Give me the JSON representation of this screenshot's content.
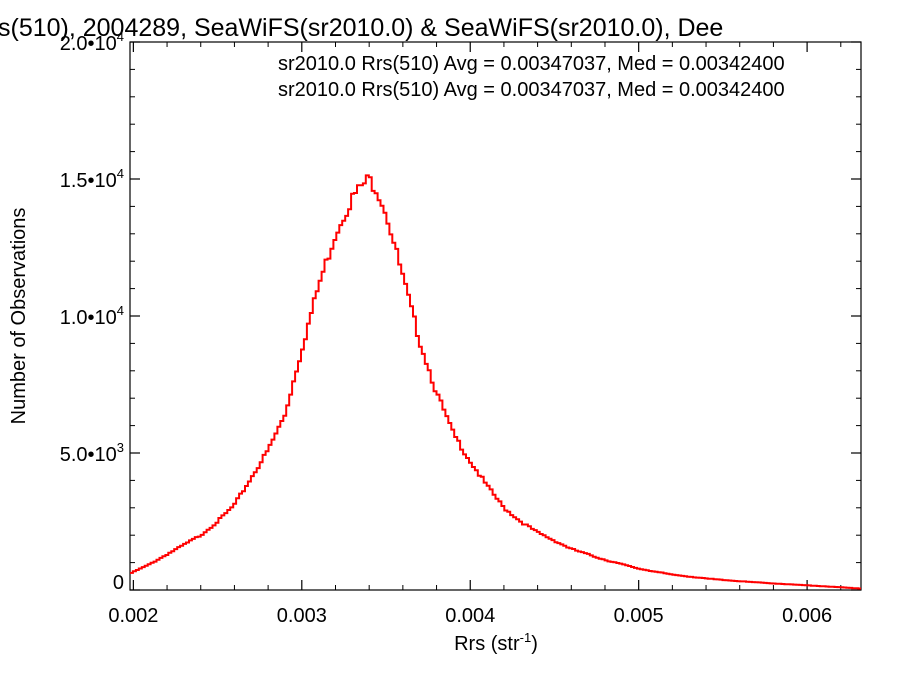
{
  "chart_data": {
    "type": "line",
    "title": "s(510), 2004289, SeaWiFS(sr2010.0) & SeaWiFS(sr2010.0), Dee",
    "xlabel": "Rrs (str",
    "xlabel_sup": "-1",
    "xlabel_end": ")",
    "ylabel": "Number of Observations",
    "xlim": [
      0.00198,
      0.00632
    ],
    "ylim": [
      0,
      20000
    ],
    "x_ticks": [
      0.002,
      0.003,
      0.004,
      0.005,
      0.006
    ],
    "x_tick_labels": [
      "0.002",
      "0.003",
      "0.004",
      "0.005",
      "0.006"
    ],
    "y_ticks": [
      {
        "value": 0,
        "mant": "0",
        "exp": ""
      },
      {
        "value": 5000,
        "mant": "5.0•10",
        "exp": "3"
      },
      {
        "value": 10000,
        "mant": "1.0•10",
        "exp": "4"
      },
      {
        "value": 15000,
        "mant": "1.5•10",
        "exp": "4"
      },
      {
        "value": 20000,
        "mant": "2.0•10",
        "exp": "4"
      }
    ],
    "annotations": [
      {
        "text": "sr2010.0 Rrs(510) Avg = 0.00347037, Med = 0.00342400",
        "color": "#000000"
      },
      {
        "text": "sr2010.0 Rrs(510) Avg = 0.00347037, Med = 0.00342400",
        "color": "#ff0000"
      }
    ],
    "series": [
      {
        "color": "#ff0000",
        "x": [
          0.00198,
          0.0021,
          0.0022,
          0.0023,
          0.0024,
          0.0025,
          0.0026,
          0.0027,
          0.0028,
          0.0029,
          0.003,
          0.0031,
          0.0032,
          0.00325,
          0.0033,
          0.00335,
          0.0034,
          0.00345,
          0.0035,
          0.0036,
          0.0037,
          0.0038,
          0.0039,
          0.004,
          0.0041,
          0.0042,
          0.0043,
          0.0044,
          0.0045,
          0.0046,
          0.0048,
          0.005,
          0.0052,
          0.0054,
          0.0056,
          0.0058,
          0.006,
          0.0062,
          0.00632
        ],
        "y": [
          600,
          950,
          1300,
          1650,
          2000,
          2500,
          3100,
          4100,
          5100,
          6400,
          8800,
          11100,
          13000,
          13700,
          14300,
          14700,
          15000,
          14600,
          13800,
          11400,
          9100,
          7200,
          5700,
          4700,
          3800,
          3000,
          2500,
          2100,
          1800,
          1500,
          1100,
          780,
          560,
          420,
          320,
          240,
          170,
          100,
          50
        ]
      }
    ]
  }
}
